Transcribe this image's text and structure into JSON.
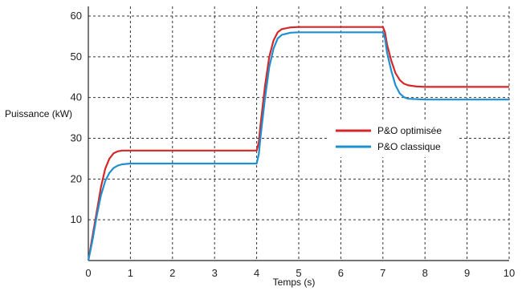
{
  "chart_data": {
    "type": "line",
    "xlabel": "Temps (s)",
    "ylabel": "Puissance (kW)",
    "xlim": [
      0,
      10
    ],
    "ylim": [
      0,
      60
    ],
    "xticks": [
      0,
      1,
      2,
      3,
      4,
      5,
      6,
      7,
      8,
      9,
      10
    ],
    "yticks": [
      10,
      20,
      30,
      40,
      50,
      60
    ],
    "grid": true,
    "legend_position": "right-middle",
    "series": [
      {
        "name": "P&O optimisée",
        "color": "#d62728",
        "x": [
          0,
          0.1,
          0.2,
          0.3,
          0.4,
          0.5,
          0.6,
          0.7,
          0.8,
          1.0,
          2.0,
          3.0,
          4.0,
          4.05,
          4.1,
          4.2,
          4.3,
          4.4,
          4.5,
          4.6,
          4.8,
          5.0,
          6.0,
          7.0,
          7.05,
          7.1,
          7.2,
          7.3,
          7.4,
          7.5,
          7.6,
          7.8,
          8.0,
          9.0,
          10.0
        ],
        "y": [
          0,
          6,
          12,
          18,
          22.5,
          25,
          26.3,
          26.8,
          27,
          27,
          27,
          27,
          27,
          29,
          34,
          43,
          50,
          54,
          56,
          56.8,
          57.2,
          57.3,
          57.3,
          57.3,
          56,
          53,
          49,
          46,
          44.3,
          43.4,
          43,
          42.7,
          42.6,
          42.6,
          42.6
        ]
      },
      {
        "name": "P&O classique",
        "color": "#1f8fd0",
        "x": [
          0,
          0.1,
          0.2,
          0.3,
          0.4,
          0.5,
          0.6,
          0.7,
          0.8,
          1.0,
          2.0,
          3.0,
          4.0,
          4.05,
          4.1,
          4.2,
          4.3,
          4.4,
          4.5,
          4.6,
          4.8,
          5.0,
          6.0,
          7.0,
          7.05,
          7.1,
          7.2,
          7.3,
          7.4,
          7.5,
          7.6,
          7.8,
          8.0,
          9.0,
          10.0
        ],
        "y": [
          0,
          5,
          11,
          16,
          19.5,
          21.5,
          22.7,
          23.3,
          23.6,
          23.8,
          23.8,
          23.8,
          23.8,
          26,
          31,
          40,
          47.5,
          52,
          54.5,
          55.4,
          55.9,
          56,
          56,
          56,
          54.5,
          51,
          46.5,
          43,
          41,
          40.1,
          39.7,
          39.6,
          39.5,
          39.5,
          39.5
        ]
      }
    ]
  }
}
